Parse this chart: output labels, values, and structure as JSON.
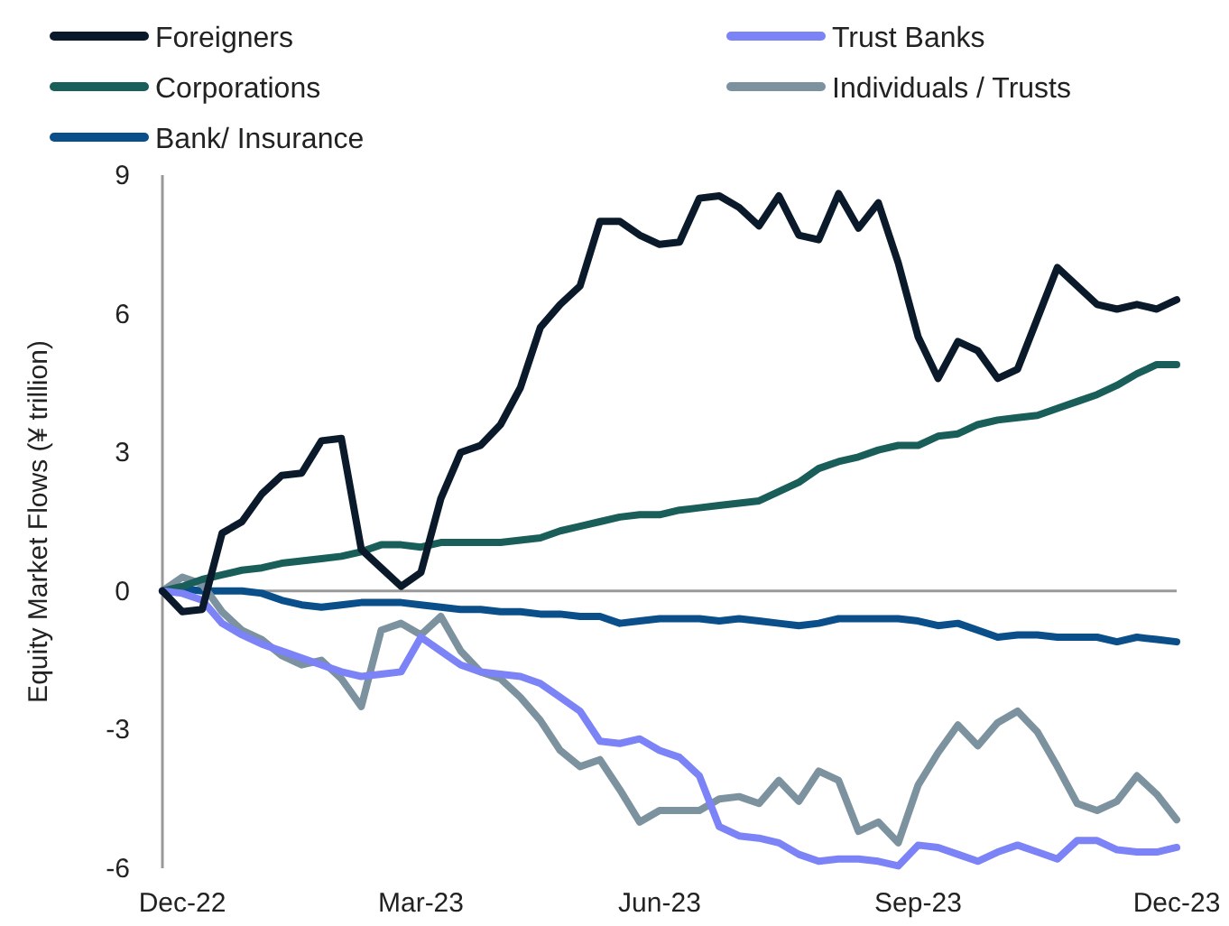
{
  "chart_data": {
    "type": "line",
    "ylabel": "Equity Market Flows (¥ trillion)",
    "categories": [
      null,
      "Dec-22",
      null,
      null,
      null,
      null,
      null,
      null,
      null,
      null,
      null,
      null,
      null,
      "Mar-23",
      null,
      null,
      null,
      null,
      null,
      null,
      null,
      null,
      null,
      null,
      null,
      "Jun-23",
      null,
      null,
      null,
      null,
      null,
      null,
      null,
      null,
      null,
      null,
      null,
      null,
      "Sep-23",
      null,
      null,
      null,
      null,
      null,
      null,
      null,
      null,
      null,
      null,
      null,
      null,
      "Dec-23"
    ],
    "ylim": [
      -6,
      9
    ],
    "yticks": [
      -6,
      -3,
      0,
      3,
      6,
      9
    ],
    "legend": "top",
    "marker": "none",
    "line_style": "solid",
    "series": [
      {
        "name": "Foreigners",
        "color": "#0b1a2b",
        "values": [
          0,
          -0.45,
          -0.4,
          1.25,
          1.5,
          2.1,
          2.5,
          2.55,
          3.25,
          3.3,
          0.9,
          0.5,
          0.1,
          0.4,
          2.0,
          3.0,
          3.15,
          3.6,
          4.4,
          5.7,
          6.2,
          6.6,
          8.0,
          8.0,
          7.7,
          7.5,
          7.55,
          8.5,
          8.55,
          8.3,
          7.9,
          8.55,
          7.7,
          7.6,
          8.6,
          7.85,
          8.4,
          7.1,
          5.5,
          4.6,
          5.4,
          5.2,
          4.6,
          4.8,
          5.9,
          7.0,
          6.6,
          6.2,
          6.1,
          6.2,
          6.1,
          6.3
        ]
      },
      {
        "name": "Trust Banks",
        "color": "#7b83f7",
        "values": [
          0,
          -0.05,
          -0.2,
          -0.7,
          -0.95,
          -1.15,
          -1.3,
          -1.45,
          -1.6,
          -1.75,
          -1.85,
          -1.8,
          -1.75,
          -1.0,
          -1.3,
          -1.6,
          -1.75,
          -1.8,
          -1.85,
          -2.0,
          -2.3,
          -2.6,
          -3.25,
          -3.3,
          -3.2,
          -3.45,
          -3.6,
          -4.0,
          -5.1,
          -5.3,
          -5.35,
          -5.45,
          -5.7,
          -5.85,
          -5.8,
          -5.8,
          -5.85,
          -5.95,
          -5.5,
          -5.55,
          -5.7,
          -5.85,
          -5.65,
          -5.5,
          -5.65,
          -5.8,
          -5.4,
          -5.4,
          -5.6,
          -5.65,
          -5.65,
          -5.55
        ]
      },
      {
        "name": "Corporations",
        "color": "#1a5e5a",
        "values": [
          0,
          0.1,
          0.25,
          0.35,
          0.45,
          0.5,
          0.6,
          0.65,
          0.7,
          0.75,
          0.85,
          1.0,
          1.0,
          0.95,
          1.05,
          1.05,
          1.05,
          1.05,
          1.1,
          1.15,
          1.3,
          1.4,
          1.5,
          1.6,
          1.65,
          1.65,
          1.75,
          1.8,
          1.85,
          1.9,
          1.95,
          2.15,
          2.35,
          2.65,
          2.8,
          2.9,
          3.05,
          3.15,
          3.15,
          3.35,
          3.4,
          3.6,
          3.7,
          3.75,
          3.8,
          3.95,
          4.1,
          4.25,
          4.45,
          4.7,
          4.9,
          4.9
        ]
      },
      {
        "name": "Individuals / Trusts",
        "color": "#7d929f",
        "values": [
          0,
          0.3,
          0.15,
          -0.45,
          -0.85,
          -1.05,
          -1.4,
          -1.6,
          -1.5,
          -1.9,
          -2.5,
          -0.85,
          -0.7,
          -0.95,
          -0.55,
          -1.3,
          -1.75,
          -1.9,
          -2.3,
          -2.8,
          -3.45,
          -3.8,
          -3.65,
          -4.3,
          -5.0,
          -4.75,
          -4.75,
          -4.75,
          -4.5,
          -4.45,
          -4.6,
          -4.1,
          -4.55,
          -3.9,
          -4.1,
          -5.2,
          -5.0,
          -5.45,
          -4.2,
          -3.5,
          -2.9,
          -3.35,
          -2.85,
          -2.6,
          -3.05,
          -3.8,
          -4.6,
          -4.75,
          -4.55,
          -4.0,
          -4.4,
          -4.95
        ]
      },
      {
        "name": "Bank/ Insurance",
        "color": "#0a4f8a",
        "values": [
          0,
          0.05,
          0,
          0,
          0,
          -0.05,
          -0.2,
          -0.3,
          -0.35,
          -0.3,
          -0.25,
          -0.25,
          -0.25,
          -0.3,
          -0.35,
          -0.4,
          -0.4,
          -0.45,
          -0.45,
          -0.5,
          -0.5,
          -0.55,
          -0.55,
          -0.7,
          -0.65,
          -0.6,
          -0.6,
          -0.6,
          -0.65,
          -0.6,
          -0.65,
          -0.7,
          -0.75,
          -0.7,
          -0.6,
          -0.6,
          -0.6,
          -0.6,
          -0.65,
          -0.75,
          -0.7,
          -0.85,
          -1.0,
          -0.95,
          -0.95,
          -1.0,
          -1.0,
          -1.0,
          -1.1,
          -1.0,
          -1.05,
          -1.1
        ]
      }
    ]
  }
}
